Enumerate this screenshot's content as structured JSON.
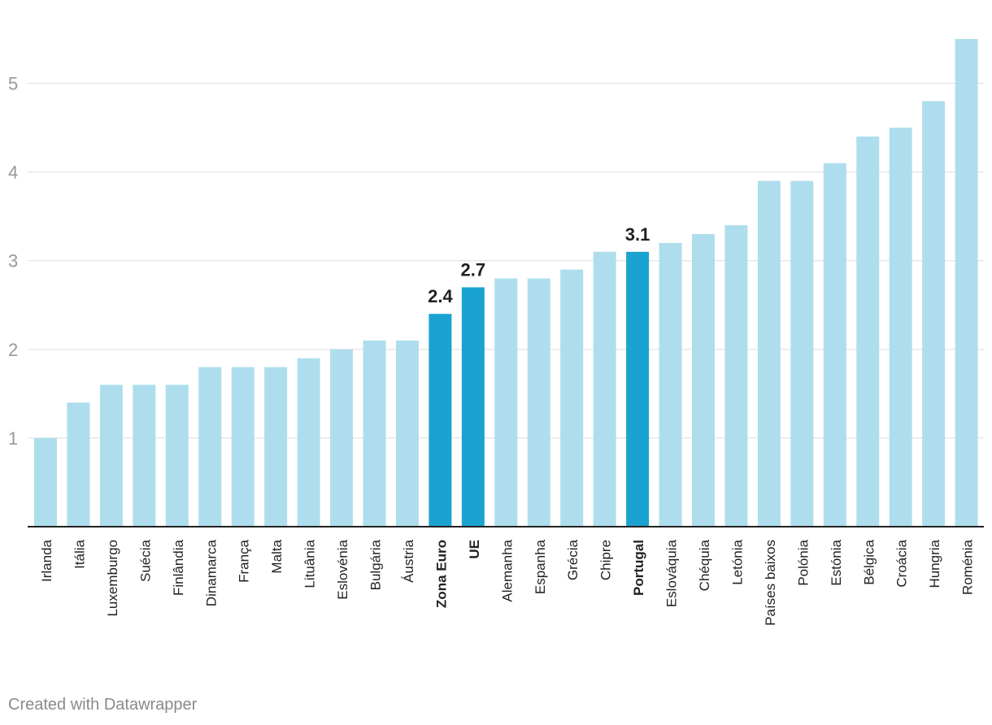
{
  "chart_data": {
    "type": "bar",
    "categories": [
      "Irlanda",
      "Itália",
      "Luxemburgo",
      "Suécia",
      "Finlândia",
      "Dinamarca",
      "França",
      "Malta",
      "Lituânia",
      "Eslovénia",
      "Bulgária",
      "Áustria",
      "Zona Euro",
      "UE",
      "Alemanha",
      "Espanha",
      "Grécia",
      "Chipre",
      "Portugal",
      "Eslováquia",
      "Chéquia",
      "Letónia",
      "Países baixos",
      "Polónia",
      "Estónia",
      "Bélgica",
      "Croácia",
      "Hungria",
      "Roménia"
    ],
    "values": [
      1.0,
      1.4,
      1.6,
      1.6,
      1.6,
      1.8,
      1.8,
      1.8,
      1.9,
      2.0,
      2.1,
      2.1,
      2.4,
      2.7,
      2.8,
      2.8,
      2.9,
      3.1,
      3.1,
      3.2,
      3.3,
      3.4,
      3.9,
      3.9,
      4.1,
      4.4,
      4.5,
      4.8,
      5.5
    ],
    "highlighted": [
      "Zona Euro",
      "UE",
      "Portugal"
    ],
    "data_labels": [
      {
        "category": "Zona Euro",
        "text": "2.4"
      },
      {
        "category": "UE",
        "text": "2.7"
      },
      {
        "category": "Portugal",
        "text": "3.1"
      }
    ],
    "y_ticks": [
      1,
      2,
      3,
      4,
      5
    ],
    "ylim": [
      0,
      5.5
    ],
    "grid": true,
    "colors": {
      "default": "#aedeed",
      "highlight": "#1aa3d0",
      "grid": "#dddddd",
      "axis": "#222222",
      "tick_label": "#999999"
    }
  },
  "footer": {
    "credit": "Created with Datawrapper"
  }
}
